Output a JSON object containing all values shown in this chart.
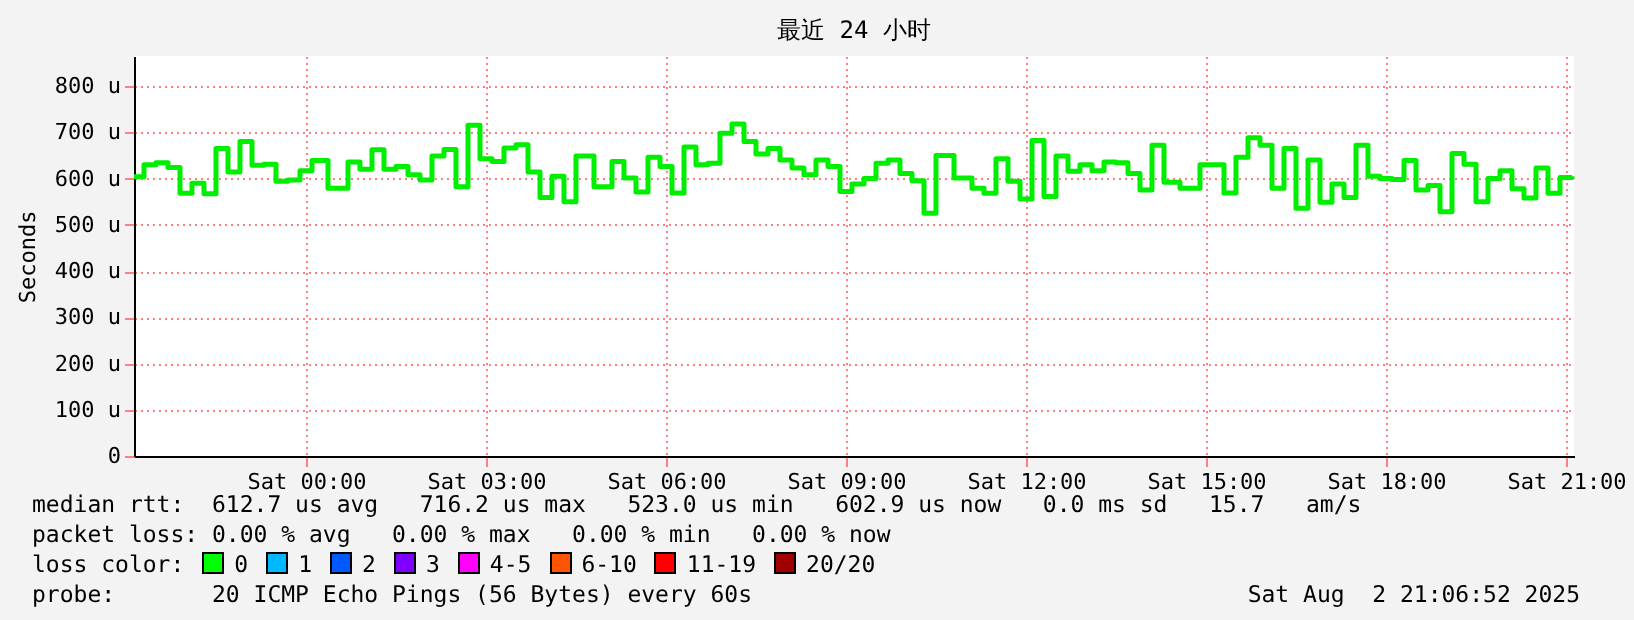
{
  "chart_data": {
    "type": "step",
    "title": "最近 24 小时",
    "ylabel": "Seconds",
    "xlim": [
      "2025-08-01T21:08",
      "2025-08-02T21:08"
    ],
    "xticks": [
      {
        "value": "2025-08-02T00:00",
        "label": "Sat 00:00"
      },
      {
        "value": "2025-08-02T03:00",
        "label": "Sat 03:00"
      },
      {
        "value": "2025-08-02T06:00",
        "label": "Sat 06:00"
      },
      {
        "value": "2025-08-02T09:00",
        "label": "Sat 09:00"
      },
      {
        "value": "2025-08-02T12:00",
        "label": "Sat 12:00"
      },
      {
        "value": "2025-08-02T15:00",
        "label": "Sat 15:00"
      },
      {
        "value": "2025-08-02T18:00",
        "label": "Sat 18:00"
      },
      {
        "value": "2025-08-02T21:00",
        "label": "Sat 21:00"
      }
    ],
    "ylim": [
      0,
      865
    ],
    "yticks": [
      0,
      {
        "value": 100,
        "label": "100 u"
      },
      {
        "value": 200,
        "label": "200 u"
      },
      {
        "value": 300,
        "label": "300 u"
      },
      {
        "value": 400,
        "label": "400 u"
      },
      {
        "value": 500,
        "label": "500 u"
      },
      {
        "value": 600,
        "label": "600 u"
      },
      {
        "value": 700,
        "label": "700 u"
      },
      {
        "value": 800,
        "label": "800 u"
      }
    ],
    "grid": true,
    "series": [
      {
        "color": "#00ee00",
        "x": [
          "2025-08-01T21:08",
          "2025-08-01T21:18",
          "2025-08-01T21:30",
          "2025-08-01T21:42",
          "2025-08-01T21:54",
          "2025-08-01T22:06",
          "2025-08-01T22:18",
          "2025-08-01T22:30",
          "2025-08-01T22:42",
          "2025-08-01T22:54",
          "2025-08-01T23:06",
          "2025-08-01T23:18",
          "2025-08-01T23:30",
          "2025-08-01T23:42",
          "2025-08-01T23:54",
          "2025-08-02T00:06",
          "2025-08-02T00:22",
          "2025-08-02T00:42",
          "2025-08-02T00:54",
          "2025-08-02T01:06",
          "2025-08-02T01:18",
          "2025-08-02T01:30",
          "2025-08-02T01:42",
          "2025-08-02T01:54",
          "2025-08-02T02:06",
          "2025-08-02T02:18",
          "2025-08-02T02:30",
          "2025-08-02T02:42",
          "2025-08-02T02:54",
          "2025-08-02T03:06",
          "2025-08-02T03:18",
          "2025-08-02T03:30",
          "2025-08-02T03:42",
          "2025-08-02T03:54",
          "2025-08-02T04:06",
          "2025-08-02T04:18",
          "2025-08-02T04:30",
          "2025-08-02T04:48",
          "2025-08-02T05:06",
          "2025-08-02T05:18",
          "2025-08-02T05:30",
          "2025-08-02T05:42",
          "2025-08-02T05:54",
          "2025-08-02T06:06",
          "2025-08-02T06:18",
          "2025-08-02T06:30",
          "2025-08-02T06:42",
          "2025-08-02T06:54",
          "2025-08-02T07:06",
          "2025-08-02T07:18",
          "2025-08-02T07:30",
          "2025-08-02T07:42",
          "2025-08-02T07:54",
          "2025-08-02T08:06",
          "2025-08-02T08:18",
          "2025-08-02T08:30",
          "2025-08-02T08:42",
          "2025-08-02T08:54",
          "2025-08-02T09:06",
          "2025-08-02T09:18",
          "2025-08-02T09:30",
          "2025-08-02T09:42",
          "2025-08-02T09:54",
          "2025-08-02T10:06",
          "2025-08-02T10:18",
          "2025-08-02T10:30",
          "2025-08-02T10:48",
          "2025-08-02T11:06",
          "2025-08-02T11:18",
          "2025-08-02T11:30",
          "2025-08-02T11:42",
          "2025-08-02T11:54",
          "2025-08-02T12:06",
          "2025-08-02T12:18",
          "2025-08-02T12:30",
          "2025-08-02T12:42",
          "2025-08-02T12:54",
          "2025-08-02T13:06",
          "2025-08-02T13:18",
          "2025-08-02T13:30",
          "2025-08-02T13:42",
          "2025-08-02T13:54",
          "2025-08-02T14:06",
          "2025-08-02T14:18",
          "2025-08-02T14:34",
          "2025-08-02T14:54",
          "2025-08-02T15:06",
          "2025-08-02T15:18",
          "2025-08-02T15:30",
          "2025-08-02T15:42",
          "2025-08-02T15:54",
          "2025-08-02T16:06",
          "2025-08-02T16:18",
          "2025-08-02T16:30",
          "2025-08-02T16:42",
          "2025-08-02T16:54",
          "2025-08-02T17:06",
          "2025-08-02T17:18",
          "2025-08-02T17:30",
          "2025-08-02T17:42",
          "2025-08-02T17:54",
          "2025-08-02T18:06",
          "2025-08-02T18:18",
          "2025-08-02T18:30",
          "2025-08-02T18:42",
          "2025-08-02T18:54",
          "2025-08-02T19:06",
          "2025-08-02T19:18",
          "2025-08-02T19:30",
          "2025-08-02T19:42",
          "2025-08-02T19:54",
          "2025-08-02T20:06",
          "2025-08-02T20:18",
          "2025-08-02T20:30",
          "2025-08-02T20:42",
          "2025-08-02T20:54",
          "2025-08-02T21:06"
        ],
        "values": [
          604,
          630,
          634,
          624,
          568,
          590,
          567,
          665,
          614,
          680,
          629,
          631,
          594,
          597,
          617,
          639,
          579,
          636,
          620,
          662,
          620,
          626,
          608,
          597,
          649,
          663,
          582,
          715,
          643,
          637,
          666,
          673,
          614,
          559,
          605,
          550,
          649,
          582,
          637,
          601,
          571,
          646,
          626,
          569,
          668,
          630,
          633,
          698,
          718,
          680,
          653,
          665,
          640,
          623,
          608,
          640,
          626,
          572,
          588,
          600,
          633,
          640,
          611,
          595,
          525,
          650,
          601,
          579,
          568,
          643,
          594,
          556,
          682,
          561,
          649,
          616,
          630,
          617,
          636,
          634,
          611,
          575,
          672,
          592,
          579,
          630,
          630,
          569,
          646,
          688,
          672,
          579,
          665,
          536,
          640,
          549,
          588,
          559,
          672,
          605,
          600,
          598,
          639,
          575,
          585,
          528,
          654,
          631,
          550,
          600,
          617,
          578,
          558,
          623,
          568,
          602,
          605
        ]
      }
    ],
    "annotations": [
      "median rtt:  612.7 us avg   716.2 us max   523.0 us min   602.9 us now   0.0 ms sd   15.7   am/s",
      "packet loss: 0.00 % avg   0.00 % max   0.00 % min   0.00 % now",
      "loss color:",
      "0",
      "1",
      "2",
      "3",
      "4-5",
      "6-10",
      "11-19",
      "20/20",
      "probe:       20 ICMP Echo Pings (56 Bytes) every 60s",
      "Sat Aug  2 21:06:52 2025"
    ]
  }
}
